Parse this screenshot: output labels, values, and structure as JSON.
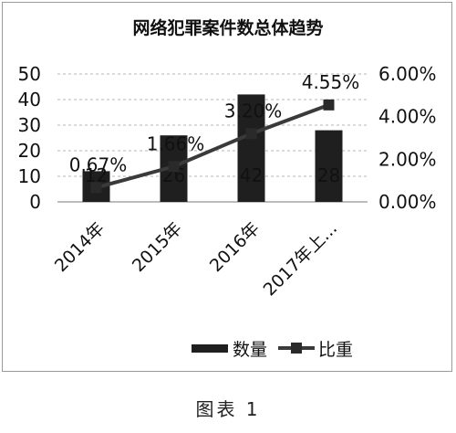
{
  "chart_data": {
    "type": "bar",
    "title": "网络犯罪案件数总体趋势",
    "categories": [
      "2014年",
      "2015年",
      "2016年",
      "2017年上..."
    ],
    "series": [
      {
        "name": "数量",
        "type": "bar",
        "axis": "left",
        "values": [
          12,
          26,
          42,
          28
        ],
        "labels": [
          "12",
          "26",
          "42",
          "28"
        ],
        "color": "#1f1f1f"
      },
      {
        "name": "比重",
        "type": "line",
        "axis": "right",
        "values": [
          0.67,
          1.66,
          3.2,
          4.55
        ],
        "labels": [
          "0.67%",
          "1.66%",
          "3.20%",
          "4.55%"
        ],
        "color": "#3a3a3a"
      }
    ],
    "y_left": {
      "min": 0,
      "max": 50,
      "ticks": [
        "0",
        "10",
        "20",
        "30",
        "40",
        "50"
      ]
    },
    "y_right": {
      "min": 0,
      "max": 6,
      "ticks": [
        "0.00%",
        "2.00%",
        "4.00%",
        "6.00%"
      ]
    },
    "grid": true,
    "legend_position": "bottom-right"
  },
  "caption": "图表 1"
}
